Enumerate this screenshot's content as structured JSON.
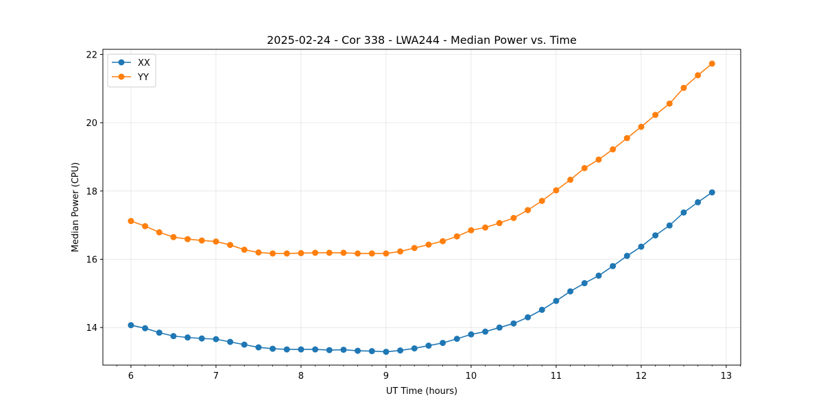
{
  "chart_data": {
    "type": "line",
    "title": "2025-02-24 - Cor 338 - LWA244 - Median Power vs. Time",
    "xlabel": "UT Time (hours)",
    "ylabel": "Median Power (CPU)",
    "xlim": [
      5.67,
      13.17
    ],
    "ylim": [
      12.9,
      22.15
    ],
    "xticks": [
      6,
      7,
      8,
      9,
      10,
      11,
      12,
      13
    ],
    "yticks": [
      14,
      16,
      18,
      20,
      22
    ],
    "grid": true,
    "legend_position": "top-left",
    "x": [
      6.0,
      6.1667,
      6.3333,
      6.5,
      6.6667,
      6.8333,
      7.0,
      7.1667,
      7.3333,
      7.5,
      7.6667,
      7.8333,
      8.0,
      8.1667,
      8.3333,
      8.5,
      8.6667,
      8.8333,
      9.0,
      9.1667,
      9.3333,
      9.5,
      9.6667,
      9.8333,
      10.0,
      10.1667,
      10.3333,
      10.5,
      10.6667,
      10.8333,
      11.0,
      11.1667,
      11.3333,
      11.5,
      11.6667,
      11.8333,
      12.0,
      12.1667,
      12.3333,
      12.5,
      12.6667,
      12.8333
    ],
    "series": [
      {
        "name": "XX",
        "color": "#1f77b4",
        "values": [
          14.07,
          13.98,
          13.85,
          13.75,
          13.71,
          13.68,
          13.66,
          13.58,
          13.5,
          13.42,
          13.38,
          13.36,
          13.36,
          13.36,
          13.34,
          13.35,
          13.32,
          13.31,
          13.29,
          13.33,
          13.39,
          13.47,
          13.55,
          13.67,
          13.8,
          13.88,
          14.0,
          14.12,
          14.3,
          14.52,
          14.78,
          15.06,
          15.3,
          15.52,
          15.8,
          16.1,
          16.37,
          16.7,
          16.99,
          17.37,
          17.67,
          17.96
        ]
      },
      {
        "name": "YY",
        "color": "#ff7f0e",
        "values": [
          17.12,
          16.97,
          16.79,
          16.65,
          16.59,
          16.55,
          16.52,
          16.42,
          16.28,
          16.2,
          16.17,
          16.17,
          16.18,
          16.19,
          16.19,
          16.19,
          16.17,
          16.17,
          16.17,
          16.23,
          16.33,
          16.43,
          16.53,
          16.67,
          16.85,
          16.93,
          17.06,
          17.21,
          17.44,
          17.71,
          18.02,
          18.33,
          18.67,
          18.92,
          19.22,
          19.55,
          19.88,
          20.23,
          20.56,
          21.02,
          21.39,
          21.73
        ]
      }
    ]
  }
}
